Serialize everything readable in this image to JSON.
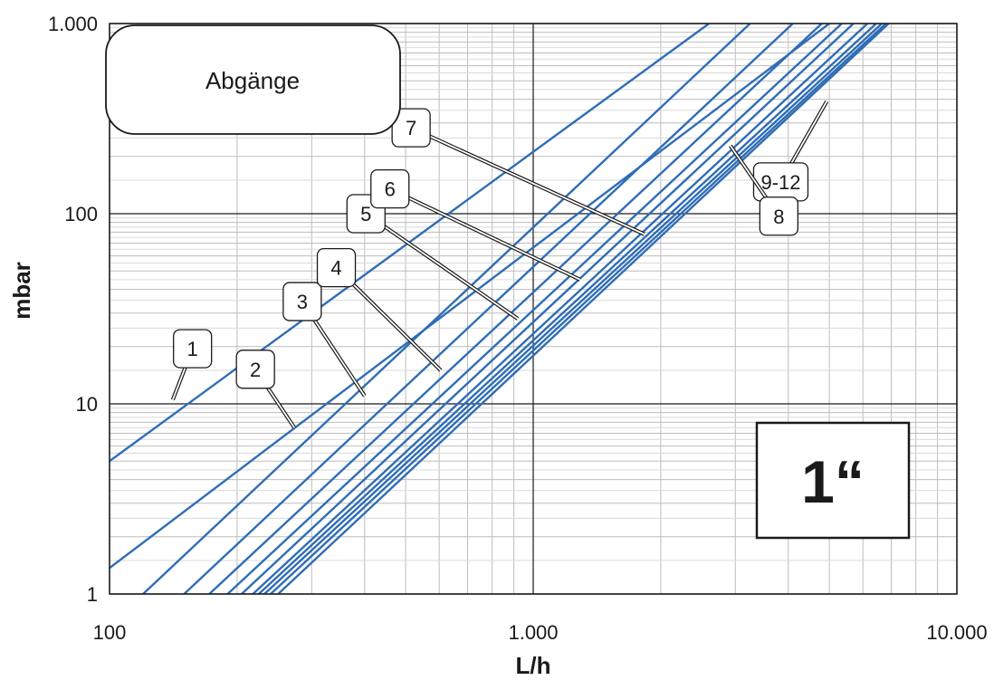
{
  "chart_data": {
    "type": "line",
    "title": "",
    "legend_box_text": "Abgänge",
    "size_badge": "1“",
    "xlabel": "L/h",
    "ylabel": "mbar",
    "x_scale": "log",
    "y_scale": "log",
    "xlim": [
      100,
      10000
    ],
    "ylim": [
      1,
      1000
    ],
    "x_ticks": [
      {
        "value": 100,
        "label": "100"
      },
      {
        "value": 1000,
        "label": "1.000"
      },
      {
        "value": 10000,
        "label": "10.000"
      }
    ],
    "y_ticks": [
      {
        "value": 1,
        "label": "1"
      },
      {
        "value": 10,
        "label": "10"
      },
      {
        "value": 100,
        "label": "100"
      },
      {
        "value": 1000,
        "label": "1.000"
      }
    ],
    "grid": true,
    "line_color": "#2f6db5",
    "series": [
      {
        "label": "1",
        "points": [
          [
            100,
            5.0
          ],
          [
            2600,
            1000
          ]
        ]
      },
      {
        "label": "2",
        "points": [
          [
            100,
            1.37
          ],
          [
            5000,
            1000
          ]
        ]
      },
      {
        "label": "3",
        "points": [
          [
            120,
            1.0
          ],
          [
            3250,
            1000
          ]
        ]
      },
      {
        "label": "4",
        "points": [
          [
            150,
            1.0
          ],
          [
            4100,
            1000
          ]
        ]
      },
      {
        "label": "5",
        "points": [
          [
            172,
            1.0
          ],
          [
            4800,
            1000
          ]
        ]
      },
      {
        "label": "6",
        "points": [
          [
            190,
            1.0
          ],
          [
            5350,
            1000
          ]
        ]
      },
      {
        "label": "7",
        "points": [
          [
            205,
            1.0
          ],
          [
            5700,
            1000
          ]
        ]
      },
      {
        "label": "8",
        "points": [
          [
            250,
            1.0
          ],
          [
            6900,
            1000
          ]
        ]
      },
      {
        "label": "",
        "points": [
          [
            218,
            1.0
          ],
          [
            6150,
            1000
          ]
        ]
      },
      {
        "label": "",
        "points": [
          [
            225,
            1.0
          ],
          [
            6450,
            1000
          ]
        ]
      },
      {
        "label": "",
        "points": [
          [
            232,
            1.0
          ],
          [
            6650,
            1000
          ]
        ]
      },
      {
        "label": "",
        "points": [
          [
            240,
            1.0
          ],
          [
            6800,
            1000
          ]
        ]
      }
    ],
    "callouts": [
      {
        "text": "1",
        "box": [
          157,
          19.5
        ],
        "target": [
          141,
          10.5
        ]
      },
      {
        "text": "2",
        "box": [
          221,
          15.2
        ],
        "target": [
          273,
          7.5
        ]
      },
      {
        "text": "3",
        "box": [
          285,
          34.5
        ],
        "target": [
          400,
          11
        ]
      },
      {
        "text": "4",
        "box": [
          343,
          52
        ],
        "target": [
          605,
          15
        ]
      },
      {
        "text": "5",
        "box": [
          403,
          100
        ],
        "target": [
          920,
          28
        ]
      },
      {
        "text": "6",
        "box": [
          459,
          135
        ],
        "target": [
          1290,
          45
        ]
      },
      {
        "text": "7",
        "box": [
          515,
          283
        ],
        "target": [
          1830,
          78
        ]
      },
      {
        "text": "9-12",
        "box": [
          3840,
          147
        ],
        "target": [
          4930,
          390
        ]
      },
      {
        "text": "8",
        "box": [
          3800,
          97
        ],
        "target": [
          2920,
          228
        ]
      }
    ]
  }
}
